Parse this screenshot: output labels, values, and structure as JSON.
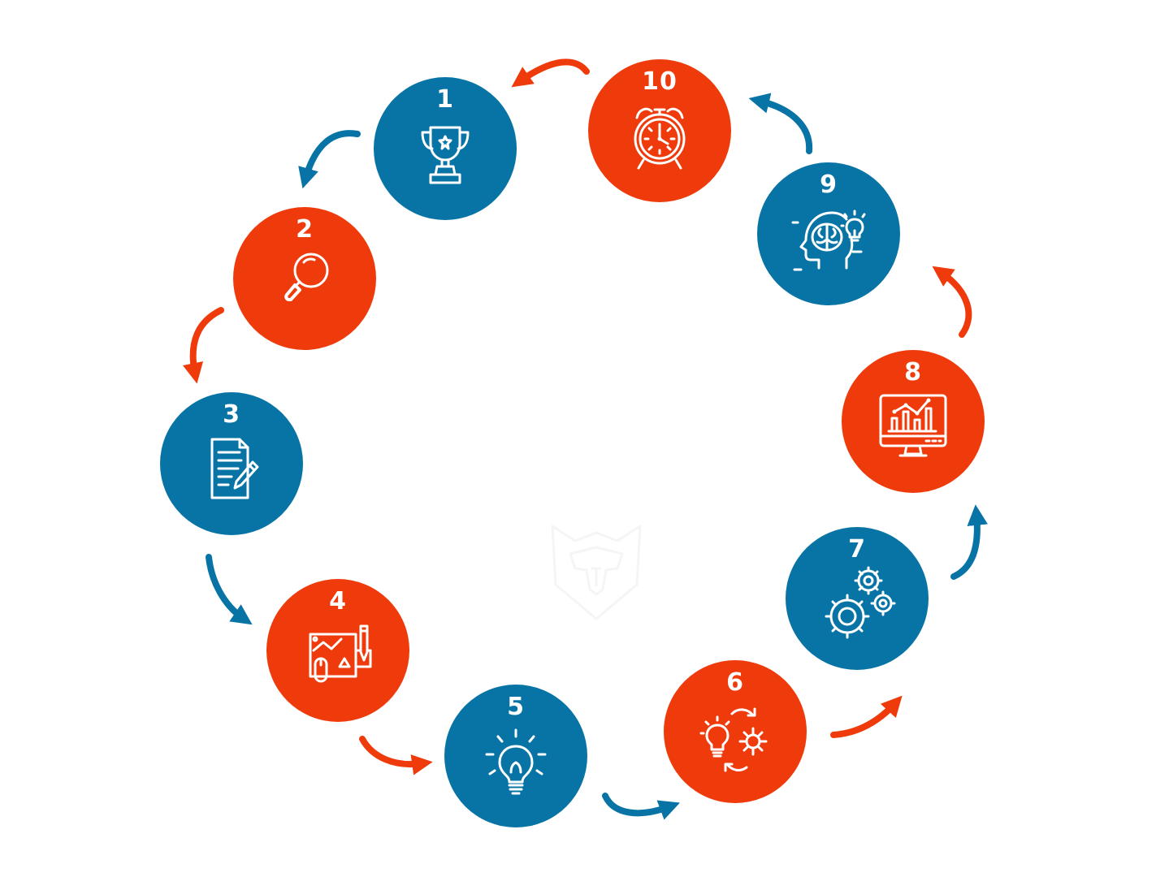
{
  "colors": {
    "blue": "#0874a6",
    "red": "#ef3b0c"
  },
  "steps": [
    {
      "number": "1",
      "color": "#0874a6",
      "icon": "trophy-icon"
    },
    {
      "number": "2",
      "color": "#ef3b0c",
      "icon": "magnifier-icon"
    },
    {
      "number": "3",
      "color": "#0874a6",
      "icon": "document-pen-icon"
    },
    {
      "number": "4",
      "color": "#ef3b0c",
      "icon": "blueprint-design-icon"
    },
    {
      "number": "5",
      "color": "#0874a6",
      "icon": "lightbulb-icon"
    },
    {
      "number": "6",
      "color": "#ef3b0c",
      "icon": "idea-gears-cycle-icon"
    },
    {
      "number": "7",
      "color": "#0874a6",
      "icon": "gears-icon"
    },
    {
      "number": "8",
      "color": "#ef3b0c",
      "icon": "monitor-chart-icon"
    },
    {
      "number": "9",
      "color": "#0874a6",
      "icon": "head-brain-idea-icon"
    },
    {
      "number": "10",
      "color": "#ef3b0c",
      "icon": "alarm-clock-icon"
    }
  ],
  "connectors": [
    {
      "from": "1",
      "to": "2",
      "color": "#0874a6"
    },
    {
      "from": "2",
      "to": "3",
      "color": "#ef3b0c"
    },
    {
      "from": "3",
      "to": "4",
      "color": "#0874a6"
    },
    {
      "from": "4",
      "to": "5",
      "color": "#ef3b0c"
    },
    {
      "from": "5",
      "to": "6",
      "color": "#0874a6"
    },
    {
      "from": "6",
      "to": "7",
      "color": "#ef3b0c"
    },
    {
      "from": "7",
      "to": "8",
      "color": "#0874a6"
    },
    {
      "from": "8",
      "to": "9",
      "color": "#ef3b0c"
    },
    {
      "from": "9",
      "to": "10",
      "color": "#0874a6"
    },
    {
      "from": "10",
      "to": "1",
      "color": "#ef3b0c"
    }
  ],
  "watermark": {
    "icon": "shield-logo-icon"
  }
}
